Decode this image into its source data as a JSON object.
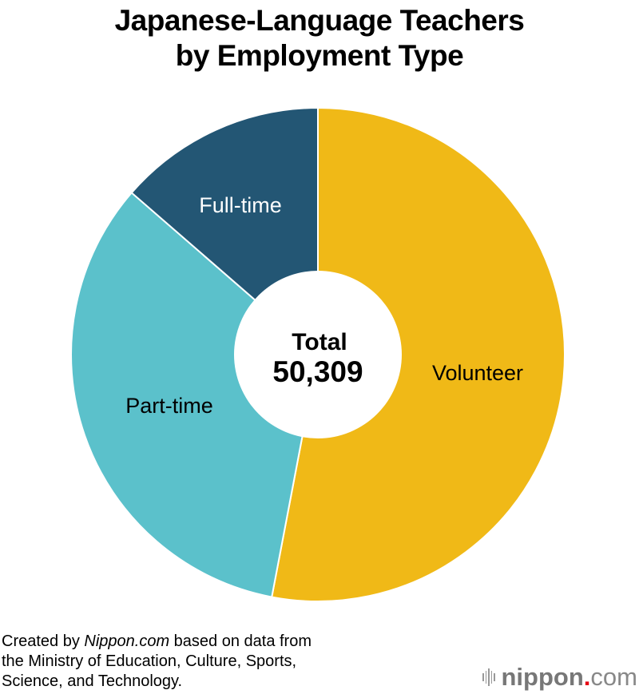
{
  "title": {
    "line1": "Japanese-Language Teachers",
    "line2": "by Employment Type"
  },
  "center": {
    "label": "Total",
    "value": "50,309"
  },
  "source": {
    "prefix": "Created by ",
    "site": "Nippon.com",
    "line1_rest": " based on data from",
    "line2": "the Ministry of Education, Culture, Sports,",
    "line3": "Science, and Technology."
  },
  "logo": {
    "name": "nippon",
    "dot": ".",
    "tld": "com"
  },
  "colors": {
    "volunteer": "#f0b917",
    "part_time": "#5bc1cb",
    "full_time": "#235674"
  },
  "chart_data": {
    "type": "pie",
    "subtype": "donut",
    "title": "Japanese-Language Teachers by Employment Type",
    "center_text": "Total 50,309",
    "total": 50309,
    "categories": [
      "Volunteer",
      "Part-time",
      "Full-time"
    ],
    "values": [
      26660,
      16800,
      6849
    ],
    "percent_estimate": [
      53.0,
      33.4,
      13.6
    ],
    "colors": [
      "#f0b917",
      "#5bc1cb",
      "#235674"
    ],
    "start_angle_deg": 0,
    "direction": "clockwise",
    "legend": "none (labels on slices)",
    "source": "Created by Nippon.com based on data from the Ministry of Education, Culture, Sports, Science, and Technology."
  }
}
